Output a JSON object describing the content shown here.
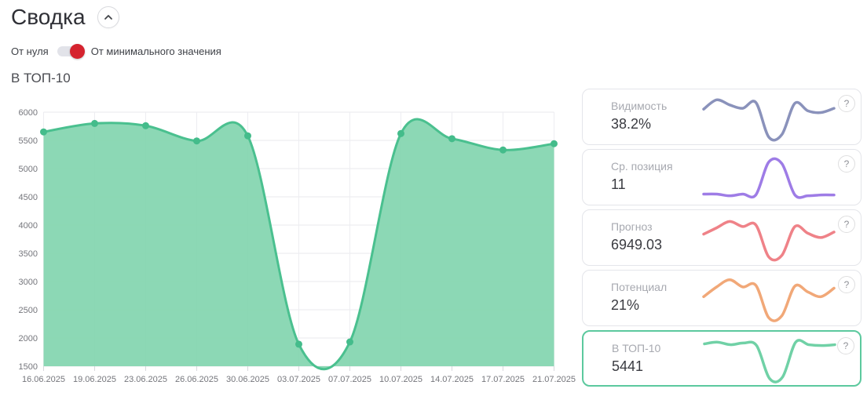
{
  "header": {
    "title": "Сводка"
  },
  "toggle": {
    "left_label": "От нуля",
    "right_label": "От минимального значения",
    "state": "right",
    "knob_color": "#d5232e"
  },
  "chart_title": "В ТОП-10",
  "chart_data": {
    "type": "area",
    "title": "В ТОП-10",
    "x": [
      "16.06.2025",
      "19.06.2025",
      "23.06.2025",
      "26.06.2025",
      "30.06.2025",
      "03.07.2025",
      "07.07.2025",
      "10.07.2025",
      "14.07.2025",
      "17.07.2025",
      "21.07.2025"
    ],
    "values": [
      5650,
      5800,
      5760,
      5490,
      5580,
      1890,
      1930,
      5620,
      5530,
      5330,
      5441
    ],
    "ylim": [
      1500,
      6000
    ],
    "ytick_step": 500,
    "grid": true,
    "legend": "none",
    "line_color": "#4ac08f",
    "fill_color": "#83d5af",
    "marker_color": "#44bc8b"
  },
  "cards": [
    {
      "label": "Видимость",
      "value": "38.2%",
      "help": "?",
      "color": "#8a92bb",
      "spark": [
        0.7,
        0.92,
        0.8,
        0.72,
        0.86,
        0.04,
        0.1,
        0.84,
        0.66,
        0.62,
        0.72
      ]
    },
    {
      "label": "Ср. позиция",
      "value": "11",
      "help": "?",
      "color": "#9e7ce6",
      "spark": [
        0.12,
        0.12,
        0.08,
        0.12,
        0.1,
        0.88,
        0.84,
        0.1,
        0.08,
        0.1,
        0.1
      ]
    },
    {
      "label": "Прогноз",
      "value": "6949.03",
      "help": "?",
      "color": "#ef8288",
      "spark": [
        0.6,
        0.75,
        0.9,
        0.78,
        0.82,
        0.06,
        0.1,
        0.78,
        0.62,
        0.52,
        0.65
      ]
    },
    {
      "label": "Потенциал",
      "value": "21%",
      "help": "?",
      "color": "#f1a878",
      "spark": [
        0.55,
        0.78,
        0.95,
        0.78,
        0.82,
        0.05,
        0.1,
        0.8,
        0.66,
        0.55,
        0.75
      ]
    },
    {
      "label": "В ТОП-10",
      "value": "5441",
      "help": "?",
      "color": "#70d1a6",
      "selected": true,
      "spark": [
        0.88,
        0.92,
        0.86,
        0.9,
        0.84,
        0.06,
        0.1,
        0.92,
        0.86,
        0.84,
        0.86
      ]
    }
  ]
}
